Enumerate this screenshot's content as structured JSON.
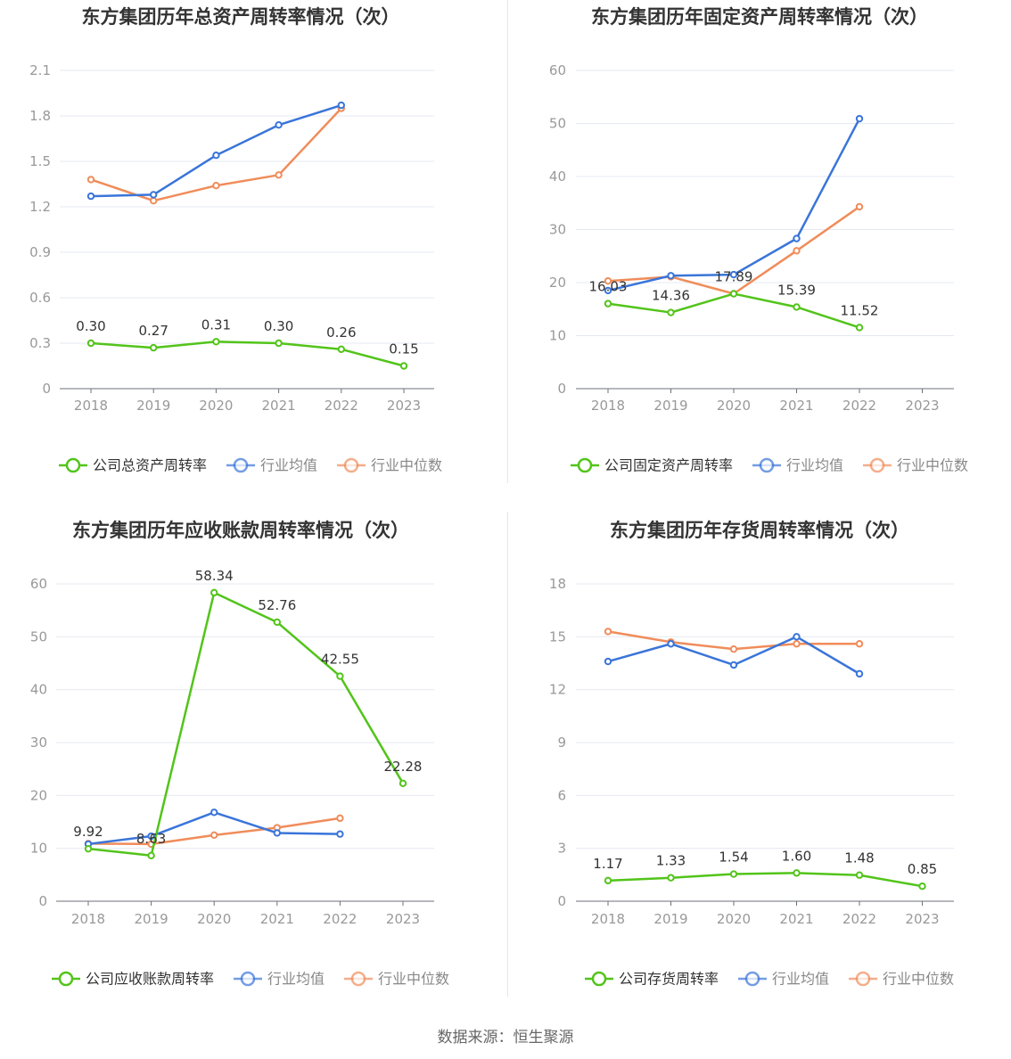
{
  "colors": {
    "company": "#52c41a",
    "avg": "#3a75d9",
    "median": "#f08c5a",
    "grid": "#e6e9f0",
    "axis": "#6e7079",
    "tick": "#999999",
    "title": "#333333",
    "label": "#333333"
  },
  "chart_data": [
    {
      "type": "line",
      "title": "东方集团历年总资产周转率情况（次）",
      "categories": [
        "2018",
        "2019",
        "2020",
        "2021",
        "2022",
        "2023"
      ],
      "ylim": [
        0,
        2.1
      ],
      "yticks": [
        "0",
        "0.3",
        "0.6",
        "0.9",
        "1.2",
        "1.5",
        "1.8",
        "2.1"
      ],
      "series": [
        {
          "name": "公司总资产周转率",
          "role": "company",
          "values": [
            0.3,
            0.27,
            0.31,
            0.3,
            0.26,
            0.15
          ],
          "labels": [
            "0.30",
            "0.27",
            "0.31",
            "0.30",
            "0.26",
            "0.15"
          ]
        },
        {
          "name": "行业均值",
          "role": "avg",
          "values": [
            1.27,
            1.28,
            1.54,
            1.74,
            1.87,
            null
          ]
        },
        {
          "name": "行业中位数",
          "role": "median",
          "values": [
            1.38,
            1.24,
            1.34,
            1.41,
            1.85,
            null
          ]
        }
      ],
      "legend": "bottom",
      "grid": true
    },
    {
      "type": "line",
      "title": "东方集团历年固定资产周转率情况（次）",
      "categories": [
        "2018",
        "2019",
        "2020",
        "2021",
        "2022",
        "2023"
      ],
      "ylim": [
        0,
        60
      ],
      "yticks": [
        "0",
        "10",
        "20",
        "30",
        "40",
        "50",
        "60"
      ],
      "series": [
        {
          "name": "公司固定资产周转率",
          "role": "company",
          "values": [
            16.03,
            14.36,
            17.89,
            15.39,
            11.52,
            null
          ],
          "labels": [
            "16.03",
            "14.36",
            "17.89",
            "15.39",
            "11.52",
            ""
          ]
        },
        {
          "name": "行业均值",
          "role": "avg",
          "values": [
            18.5,
            21.3,
            21.5,
            28.3,
            50.9,
            null
          ]
        },
        {
          "name": "行业中位数",
          "role": "median",
          "values": [
            20.3,
            21.1,
            17.9,
            26.0,
            34.3,
            null
          ]
        }
      ],
      "legend": "bottom",
      "grid": true
    },
    {
      "type": "line",
      "title": "东方集团历年应收账款周转率情况（次）",
      "categories": [
        "2018",
        "2019",
        "2020",
        "2021",
        "2022",
        "2023"
      ],
      "ylim": [
        0,
        60
      ],
      "yticks": [
        "0",
        "10",
        "20",
        "30",
        "40",
        "50",
        "60"
      ],
      "series": [
        {
          "name": "公司应收账款周转率",
          "role": "company",
          "values": [
            9.92,
            8.63,
            58.34,
            52.76,
            42.55,
            22.28
          ],
          "labels": [
            "9.92",
            "8.63",
            "58.34",
            "52.76",
            "42.55",
            "22.28"
          ]
        },
        {
          "name": "行业均值",
          "role": "avg",
          "values": [
            10.8,
            12.3,
            16.8,
            12.9,
            12.7,
            null
          ]
        },
        {
          "name": "行业中位数",
          "role": "median",
          "values": [
            10.9,
            10.8,
            12.5,
            13.9,
            15.7,
            null
          ]
        }
      ],
      "legend": "bottom",
      "grid": true
    },
    {
      "type": "line",
      "title": "东方集团历年存货周转率情况（次）",
      "categories": [
        "2018",
        "2019",
        "2020",
        "2021",
        "2022",
        "2023"
      ],
      "ylim": [
        0,
        18
      ],
      "yticks": [
        "0",
        "3",
        "6",
        "9",
        "12",
        "15",
        "18"
      ],
      "series": [
        {
          "name": "公司存货周转率",
          "role": "company",
          "values": [
            1.17,
            1.33,
            1.54,
            1.6,
            1.48,
            0.85
          ],
          "labels": [
            "1.17",
            "1.33",
            "1.54",
            "1.60",
            "1.48",
            "0.85"
          ]
        },
        {
          "name": "行业均值",
          "role": "avg",
          "values": [
            13.6,
            14.6,
            13.4,
            15.0,
            12.9,
            null
          ]
        },
        {
          "name": "行业中位数",
          "role": "median",
          "values": [
            15.3,
            14.7,
            14.3,
            14.6,
            14.6,
            null
          ]
        }
      ],
      "legend": "bottom",
      "grid": true
    }
  ],
  "footer": {
    "source": "数据来源：恒生聚源"
  }
}
